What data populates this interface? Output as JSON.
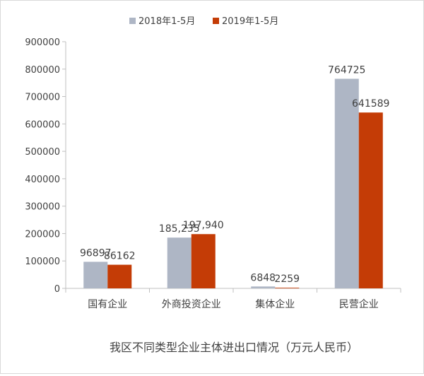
{
  "chart_data": {
    "type": "bar",
    "title": "我区不同类型企业主体进出口情况（万元人民币）",
    "xlabel": "",
    "ylabel": "",
    "categories": [
      "国有企业",
      "外商投资企业",
      "集体企业",
      "民营企业"
    ],
    "series": [
      {
        "name": "2018年1-5月",
        "values": [
          96897,
          185235,
          6848,
          764725
        ],
        "value_labels": [
          "96897",
          "185,235",
          "6848",
          "764725"
        ],
        "color": "#aeb6c5"
      },
      {
        "name": "2019年1-5月",
        "values": [
          86162,
          197940,
          2259,
          641589
        ],
        "value_labels": [
          "86162",
          "197,940",
          "2259",
          "641589"
        ],
        "color": "#c43c06"
      }
    ],
    "ylim": [
      0,
      900000
    ],
    "yticks": [
      0,
      100000,
      200000,
      300000,
      400000,
      500000,
      600000,
      700000,
      800000,
      900000
    ],
    "ytick_labels": [
      "0",
      "100000",
      "200000",
      "300000",
      "400000",
      "500000",
      "600000",
      "700000",
      "800000",
      "900000"
    ],
    "grid": false,
    "legend_position": "top"
  }
}
